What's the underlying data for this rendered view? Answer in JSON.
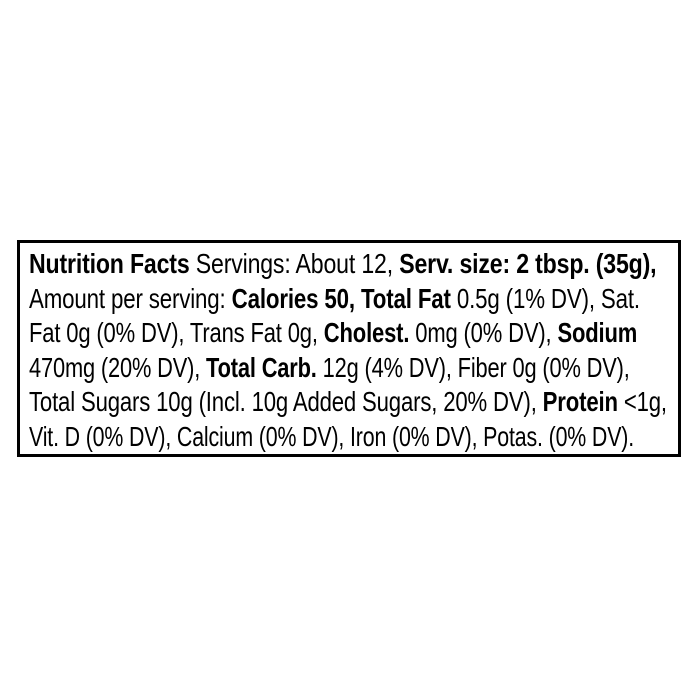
{
  "page": {
    "background_color": "#ffffff"
  },
  "label": {
    "name": "nutrition-facts-linear-label",
    "border_color": "#000000",
    "text_color": "#000000",
    "title": "Nutrition Facts",
    "servings": "About 12",
    "serving_size": "2 tbsp. (35g)",
    "calories": "50",
    "nutrients": [
      {
        "name": "Total Fat",
        "amount": "0.5g",
        "dv": "1% DV"
      },
      {
        "name": "Sat. Fat",
        "amount": "0g",
        "dv": "0% DV"
      },
      {
        "name": "Trans Fat",
        "amount": "0g",
        "dv": ""
      },
      {
        "name": "Cholest.",
        "amount": "0mg",
        "dv": "0% DV"
      },
      {
        "name": "Sodium",
        "amount": "470mg",
        "dv": "20% DV"
      },
      {
        "name": "Total Carb.",
        "amount": "12g",
        "dv": "4% DV"
      },
      {
        "name": "Fiber",
        "amount": "0g",
        "dv": "0% DV"
      },
      {
        "name": "Total Sugars",
        "amount": "10g",
        "dv": ""
      },
      {
        "name": "Incl. Added Sugars",
        "amount": "10g",
        "dv": "20% DV"
      },
      {
        "name": "Protein",
        "amount": "<1g",
        "dv": ""
      },
      {
        "name": "Vit. D",
        "amount": "",
        "dv": "0% DV"
      },
      {
        "name": "Calcium",
        "amount": "",
        "dv": "0% DV"
      },
      {
        "name": "Iron",
        "amount": "",
        "dv": "0% DV"
      },
      {
        "name": "Potas.",
        "amount": "",
        "dv": "0% DV"
      }
    ],
    "lines": [
      {
        "segments": [
          {
            "text": "Nutrition Facts",
            "bold": true
          },
          {
            "text": " Servings: About 12, ",
            "bold": false
          },
          {
            "text": "Serv. size: 2 tbsp. (35g),",
            "bold": true
          }
        ]
      },
      {
        "segments": [
          {
            "text": "Amount per serving: ",
            "bold": false
          },
          {
            "text": "Calories 50, Total Fat",
            "bold": true
          },
          {
            "text": " 0.5g (1% DV), Sat.",
            "bold": false
          }
        ]
      },
      {
        "segments": [
          {
            "text": "Fat 0g (0% DV), Trans Fat 0g, ",
            "bold": false
          },
          {
            "text": "Cholest.",
            "bold": true
          },
          {
            "text": " 0mg (0% DV), ",
            "bold": false
          },
          {
            "text": "Sodium",
            "bold": true
          }
        ]
      },
      {
        "segments": [
          {
            "text": "470mg (20% DV), ",
            "bold": false
          },
          {
            "text": "Total Carb.",
            "bold": true
          },
          {
            "text": " 12g (4% DV), Fiber 0g (0% DV),",
            "bold": false
          }
        ]
      },
      {
        "segments": [
          {
            "text": "Total Sugars 10g (Incl. 10g Added Sugars, 20% DV), ",
            "bold": false
          },
          {
            "text": "Protein",
            "bold": true
          },
          {
            "text": " <1g,",
            "bold": false
          }
        ]
      },
      {
        "segments": [
          {
            "text": "Vit. D (0% DV), Calcium (0% DV), Iron (0% DV), Potas. (0% DV).",
            "bold": false
          }
        ]
      }
    ]
  }
}
